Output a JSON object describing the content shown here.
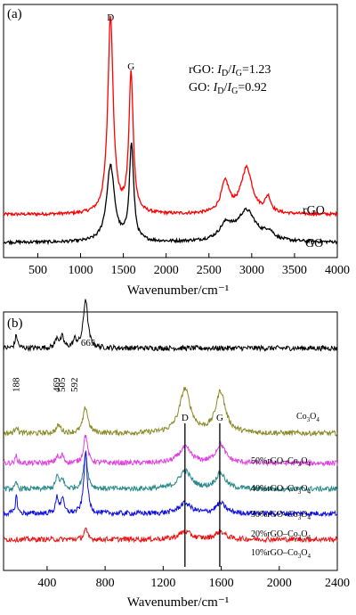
{
  "chart_data": [
    {
      "panel_label": "(a)",
      "type": "line",
      "xlabel": "Wavenumber/cm⁻¹",
      "xlim": [
        100,
        4000
      ],
      "xticks": [
        "500",
        "1000",
        "1500",
        "2000",
        "2500",
        "3000",
        "3500",
        "4000"
      ],
      "xtick_values": [
        500,
        1000,
        1500,
        2000,
        2500,
        3000,
        3500,
        4000
      ],
      "peak_labels": [
        {
          "text": "D",
          "x": 1350
        },
        {
          "text": "G",
          "x": 1590
        }
      ],
      "ratio_lines": [
        "rGO: Iₕ/Iₑ=1.23",
        "GO: Iₕ/Iₑ=0.92"
      ],
      "ratio_parts": [
        {
          "prefix": "rGO: ",
          "value": "=1.23"
        },
        {
          "prefix": "GO: ",
          "value": "=0.92"
        }
      ],
      "ratio_symbol": "I",
      "ratio_sub_d": "D",
      "ratio_sub_g": "G",
      "series": [
        {
          "name": "rGO",
          "color": "#ff0000",
          "baseline": 0.17,
          "peaks": [
            [
              1350,
              0.78,
              38
            ],
            [
              1590,
              0.55,
              30
            ],
            [
              2690,
              0.12,
              60
            ],
            [
              2940,
              0.18,
              80
            ],
            [
              3190,
              0.06,
              40
            ]
          ]
        },
        {
          "name": "GO",
          "color": "#000000",
          "baseline": 0.06,
          "peaks": [
            [
              1350,
              0.3,
              55
            ],
            [
              1595,
              0.38,
              30
            ],
            [
              2700,
              0.06,
              90
            ],
            [
              2940,
              0.12,
              130
            ],
            [
              3200,
              0.03,
              70
            ]
          ]
        }
      ]
    },
    {
      "panel_label": "(b)",
      "type": "line",
      "xlabel": "Wavenumber/cm⁻¹",
      "xlim": [
        100,
        2400
      ],
      "xticks": [
        "400",
        "800",
        "1200",
        "1600",
        "2000",
        "2400"
      ],
      "xtick_values": [
        400,
        800,
        1200,
        1600,
        2000,
        2400
      ],
      "peak_annotations": [
        "188",
        "469",
        "505",
        "592",
        "665"
      ],
      "peak_annotation_x": [
        188,
        469,
        505,
        592,
        665
      ],
      "marker_labels": [
        {
          "text": "D",
          "x": 1350
        },
        {
          "text": "G",
          "x": 1590
        }
      ],
      "series": [
        {
          "name": "Co₃O₄",
          "prefix": "Co",
          "color": "#000000",
          "baseline": 0.86,
          "peaks": [
            [
              188,
              0.05,
              10
            ],
            [
              469,
              0.04,
              14
            ],
            [
              505,
              0.04,
              12
            ],
            [
              592,
              0.03,
              14
            ],
            [
              665,
              0.19,
              18
            ]
          ]
        },
        {
          "name": "50%rGO–Co₃O₄",
          "prefix": "50%rGO–Co",
          "color": "#8b8b2a",
          "baseline": 0.53,
          "peaks": [
            [
              188,
              0.03,
              10
            ],
            [
              480,
              0.03,
              20
            ],
            [
              665,
              0.1,
              20
            ],
            [
              1350,
              0.17,
              45
            ],
            [
              1595,
              0.16,
              40
            ]
          ]
        },
        {
          "name": "40%rGO–Co₃O₄",
          "prefix": "40%rGO–Co",
          "color": "#e040e0",
          "baseline": 0.415,
          "peaks": [
            [
              188,
              0.03,
              8
            ],
            [
              469,
              0.025,
              12
            ],
            [
              505,
              0.03,
              12
            ],
            [
              665,
              0.11,
              16
            ],
            [
              1350,
              0.06,
              50
            ],
            [
              1595,
              0.07,
              40
            ]
          ]
        },
        {
          "name": "30%rGO–Co₃O₄",
          "prefix": "30%rGO–Co",
          "color": "#2a8a8a",
          "baseline": 0.315,
          "peaks": [
            [
              188,
              0.025,
              8
            ],
            [
              469,
              0.05,
              12
            ],
            [
              505,
              0.04,
              12
            ],
            [
              665,
              0.14,
              16
            ],
            [
              1350,
              0.07,
              50
            ],
            [
              1595,
              0.06,
              40
            ]
          ]
        },
        {
          "name": "20%rGO–Co₃O₄",
          "prefix": "20%rGO–Co",
          "color": "#1010e0",
          "baseline": 0.22,
          "peaks": [
            [
              188,
              0.07,
              8
            ],
            [
              469,
              0.06,
              12
            ],
            [
              505,
              0.06,
              12
            ],
            [
              665,
              0.24,
              14
            ],
            [
              1350,
              0.04,
              50
            ],
            [
              1595,
              0.04,
              40
            ]
          ]
        },
        {
          "name": "10%rGO–Co₃O₄",
          "prefix": "10%rGO–Co",
          "color": "#ee1111",
          "baseline": 0.12,
          "peaks": [
            [
              665,
              0.04,
              14
            ],
            [
              1350,
              0.03,
              50
            ],
            [
              1595,
              0.03,
              40
            ]
          ]
        }
      ],
      "subscript_3": "3",
      "subscript_4": "4",
      "middle_O": "O"
    }
  ]
}
